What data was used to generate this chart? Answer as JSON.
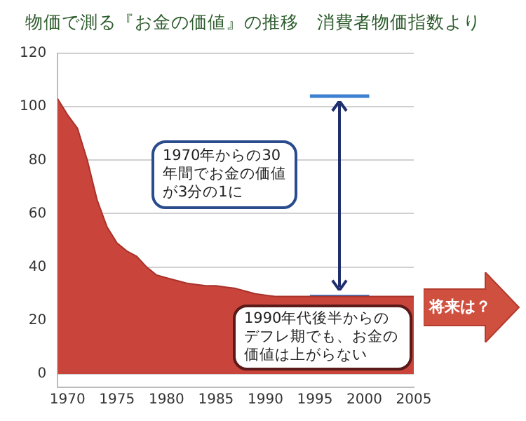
{
  "chart_data": {
    "type": "area",
    "title": "物価で測る『お金の価値』の推移",
    "subtitle": "消費者物価指数より",
    "xlim": [
      1969,
      2005
    ],
    "xticks": [
      1970,
      1975,
      1980,
      1985,
      1990,
      1995,
      2000,
      2005
    ],
    "ylim": [
      -5,
      120
    ],
    "yticks": [
      0,
      20,
      40,
      60,
      80,
      100,
      120
    ],
    "grid": "y",
    "legend": false,
    "marker": "none",
    "series": [
      {
        "color": "#c9453b",
        "x": [
          1969,
          1970,
          1971,
          1972,
          1973,
          1974,
          1975,
          1976,
          1977,
          1978,
          1979,
          1980,
          1981,
          1982,
          1983,
          1984,
          1985,
          1986,
          1987,
          1988,
          1989,
          1990,
          1991,
          1992,
          1993,
          1994,
          1995,
          1996,
          1997,
          1998,
          1999,
          2000,
          2001,
          2002,
          2003,
          2004,
          2005
        ],
        "values": [
          103,
          97,
          92,
          80,
          65,
          55,
          49,
          46,
          44,
          40,
          37,
          36,
          35,
          34,
          33.5,
          33,
          33,
          32.5,
          32,
          31,
          30,
          29.5,
          29,
          29,
          29,
          29,
          29,
          29,
          29,
          29,
          29,
          29,
          29,
          29,
          29,
          29,
          29
        ]
      },
      {
        "type": "line",
        "color": "#3d7fd0",
        "x": [
          1994.5,
          2000.5
        ],
        "values": [
          104,
          104
        ]
      },
      {
        "type": "line",
        "color": "#3d7fd0",
        "x": [
          1994.5,
          2000.5
        ],
        "values": [
          29,
          29
        ]
      }
    ],
    "annotations": [
      "1970年からの30年間でお金の価値が3分の1に",
      "1990年代後半からのデフレ期でも、お金の価値は上がらない",
      "将来は？"
    ]
  }
}
